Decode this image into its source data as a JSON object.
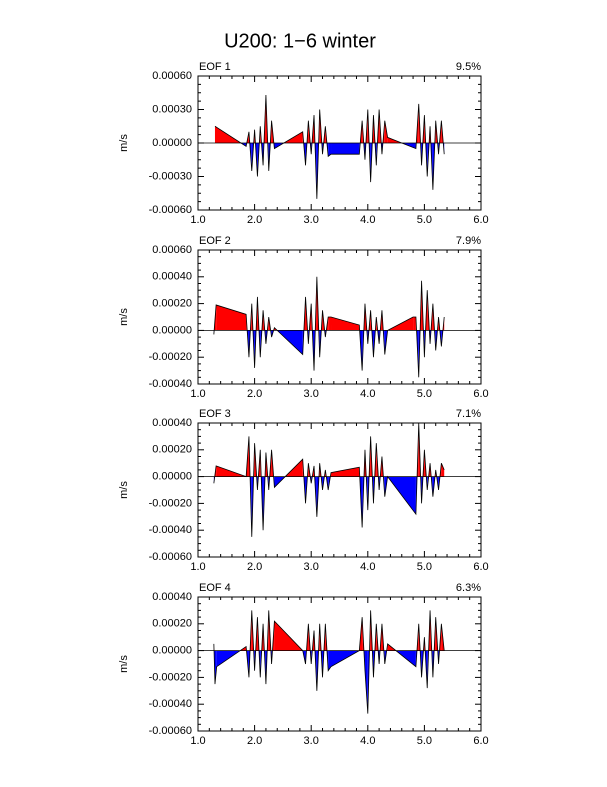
{
  "title": "U200: 1−6 winter",
  "chart_data": [
    {
      "type": "area",
      "label": "EOF 1",
      "annotation": "9.5%",
      "ylabel": "m/s",
      "pos_color": "#ff0000",
      "neg_color": "#0000ff",
      "xlim": [
        1,
        6
      ],
      "xticks": [
        {
          "value": 1,
          "label": "1.0"
        },
        {
          "value": 2,
          "label": "2.0"
        },
        {
          "value": 3,
          "label": "3.0"
        },
        {
          "value": 4,
          "label": "4.0"
        },
        {
          "value": 5,
          "label": "5.0"
        },
        {
          "value": 6,
          "label": "6.0"
        }
      ],
      "ylim": [
        -0.0006,
        0.0006
      ],
      "yticks": [
        {
          "value": -0.0006,
          "label": "-0.00060"
        },
        {
          "value": -0.0003,
          "label": "-0.00030"
        },
        {
          "value": 0,
          "label": "0.00000"
        },
        {
          "value": 0.0003,
          "label": "0.00030"
        },
        {
          "value": 0.0006,
          "label": "0.00060"
        }
      ],
      "x": [
        1.3,
        1.85,
        1.9,
        1.95,
        2.0,
        2.05,
        2.1,
        2.15,
        2.2,
        2.25,
        2.3,
        2.35,
        2.85,
        2.9,
        2.95,
        3.0,
        3.05,
        3.1,
        3.15,
        3.2,
        3.25,
        3.3,
        3.35,
        3.85,
        3.9,
        3.95,
        4.0,
        4.05,
        4.1,
        4.15,
        4.2,
        4.25,
        4.3,
        4.35,
        4.85,
        4.9,
        4.95,
        5.0,
        5.05,
        5.1,
        5.15,
        5.2,
        5.25,
        5.3,
        5.35
      ],
      "values": [
        0.00015,
        -3e-05,
        0.0001,
        -0.00025,
        0.00012,
        -0.0003,
        0.00015,
        -0.0002,
        0.00043,
        -0.00025,
        0.0002,
        -5e-05,
        0.0001,
        -0.0002,
        0.0002,
        -0.0001,
        0.00025,
        -0.0005,
        0.0003,
        -0.0001,
        0.00015,
        -0.00012,
        -0.0001,
        -0.0001,
        0.0002,
        -0.00015,
        0.0003,
        -0.00035,
        0.00025,
        -0.0002,
        0.0003,
        -0.0001,
        0.0002,
        5e-05,
        -5e-05,
        0.00035,
        -0.0002,
        0.00025,
        -0.0003,
        0.00015,
        -0.00042,
        0.0002,
        -0.0001,
        0.0002,
        -0.0001
      ]
    },
    {
      "type": "area",
      "label": "EOF 2",
      "annotation": "7.9%",
      "ylabel": "m/s",
      "pos_color": "#ff0000",
      "neg_color": "#0000ff",
      "xlim": [
        1,
        6
      ],
      "xticks": [
        {
          "value": 1,
          "label": "1.0"
        },
        {
          "value": 2,
          "label": "2.0"
        },
        {
          "value": 3,
          "label": "3.0"
        },
        {
          "value": 4,
          "label": "4.0"
        },
        {
          "value": 5,
          "label": "5.0"
        },
        {
          "value": 6,
          "label": "6.0"
        }
      ],
      "ylim": [
        -0.0004,
        0.0006
      ],
      "yticks": [
        {
          "value": -0.0004,
          "label": "-0.00040"
        },
        {
          "value": -0.0002,
          "label": "-0.00020"
        },
        {
          "value": 0,
          "label": "0.00000"
        },
        {
          "value": 0.0002,
          "label": "0.00020"
        },
        {
          "value": 0.0004,
          "label": "0.00040"
        },
        {
          "value": 0.0006,
          "label": "0.00060"
        }
      ],
      "x": [
        1.28,
        1.32,
        1.85,
        1.9,
        1.95,
        2.0,
        2.05,
        2.1,
        2.15,
        2.2,
        2.25,
        2.3,
        2.35,
        2.85,
        2.9,
        2.95,
        3.0,
        3.05,
        3.1,
        3.15,
        3.2,
        3.25,
        3.3,
        3.35,
        3.85,
        3.9,
        3.95,
        4.0,
        4.05,
        4.1,
        4.15,
        4.2,
        4.25,
        4.3,
        4.35,
        4.8,
        4.85,
        4.9,
        4.95,
        5.0,
        5.05,
        5.1,
        5.15,
        5.2,
        5.25,
        5.3,
        5.35
      ],
      "values": [
        -3e-05,
        0.00019,
        0.00012,
        -0.0002,
        0.0002,
        -0.00028,
        0.00025,
        -0.0002,
        0.00015,
        -0.0001,
        0.0001,
        -5e-05,
        2e-05,
        -0.00018,
        0.00025,
        -0.0001,
        0.0002,
        -0.0003,
        0.0004,
        -0.0002,
        0.00015,
        -5e-05,
        0.0001,
        0.0001,
        4e-05,
        -0.0003,
        0.0002,
        -0.0001,
        0.00015,
        -0.0002,
        0.0001,
        -0.0001,
        0.00015,
        -0.00018,
        0.0,
        0.0001,
        0.0001,
        -0.00035,
        0.00037,
        -0.0002,
        0.0003,
        -0.0001,
        0.0002,
        -0.00015,
        0.0001,
        -0.00012,
        0.0001
      ]
    },
    {
      "type": "area",
      "label": "EOF 3",
      "annotation": "7.1%",
      "ylabel": "m/s",
      "pos_color": "#ff0000",
      "neg_color": "#0000ff",
      "xlim": [
        1,
        6
      ],
      "xticks": [
        {
          "value": 1,
          "label": "1.0"
        },
        {
          "value": 2,
          "label": "2.0"
        },
        {
          "value": 3,
          "label": "3.0"
        },
        {
          "value": 4,
          "label": "4.0"
        },
        {
          "value": 5,
          "label": "5.0"
        },
        {
          "value": 6,
          "label": "6.0"
        }
      ],
      "ylim": [
        -0.0006,
        0.0004
      ],
      "yticks": [
        {
          "value": -0.0006,
          "label": "-0.00060"
        },
        {
          "value": -0.0004,
          "label": "-0.00040"
        },
        {
          "value": -0.0002,
          "label": "-0.00020"
        },
        {
          "value": 0,
          "label": "0.00000"
        },
        {
          "value": 0.0002,
          "label": "0.00020"
        },
        {
          "value": 0.0004,
          "label": "0.00040"
        }
      ],
      "x": [
        1.28,
        1.32,
        1.85,
        1.9,
        1.95,
        2.0,
        2.05,
        2.1,
        2.15,
        2.2,
        2.25,
        2.3,
        2.35,
        2.85,
        2.9,
        2.95,
        3.0,
        3.05,
        3.1,
        3.15,
        3.2,
        3.25,
        3.3,
        3.35,
        3.85,
        3.9,
        3.95,
        4.0,
        4.05,
        4.1,
        4.15,
        4.2,
        4.25,
        4.3,
        4.35,
        4.85,
        4.9,
        4.95,
        5.0,
        5.05,
        5.1,
        5.15,
        5.2,
        5.25,
        5.3,
        5.35
      ],
      "values": [
        -5e-05,
        8e-05,
        0.0,
        0.0003,
        -0.00045,
        0.00025,
        -0.0001,
        0.0002,
        -0.0004,
        0.00018,
        -0.0001,
        0.0002,
        -8e-05,
        0.00013,
        -0.0002,
        0.0001,
        -5e-05,
        8e-05,
        -0.0003,
        0.0001,
        -0.0001,
        5e-05,
        -0.0001,
        3e-05,
        7e-05,
        -0.00038,
        0.0002,
        -0.00025,
        0.0003,
        -0.0002,
        0.00025,
        -0.0001,
        0.00015,
        -0.00015,
        0.0,
        -0.00028,
        0.0004,
        -0.0002,
        0.0002,
        -0.0001,
        0.0001,
        -0.00015,
        5e-05,
        -0.0001,
        0.0001,
        5e-05
      ]
    },
    {
      "type": "area",
      "label": "EOF 4",
      "annotation": "6.3%",
      "ylabel": "m/s",
      "pos_color": "#ff0000",
      "neg_color": "#0000ff",
      "xlim": [
        1,
        6
      ],
      "xticks": [
        {
          "value": 1,
          "label": "1.0"
        },
        {
          "value": 2,
          "label": "2.0"
        },
        {
          "value": 3,
          "label": "3.0"
        },
        {
          "value": 4,
          "label": "4.0"
        },
        {
          "value": 5,
          "label": "5.0"
        },
        {
          "value": 6,
          "label": "6.0"
        }
      ],
      "ylim": [
        -0.0006,
        0.0004
      ],
      "yticks": [
        {
          "value": -0.0006,
          "label": "-0.00060"
        },
        {
          "value": -0.0004,
          "label": "-0.00040"
        },
        {
          "value": -0.0002,
          "label": "-0.00020"
        },
        {
          "value": 0,
          "label": "0.00000"
        },
        {
          "value": 0.0002,
          "label": "0.00020"
        },
        {
          "value": 0.0004,
          "label": "0.00040"
        }
      ],
      "x": [
        1.28,
        1.3,
        1.33,
        1.85,
        1.9,
        1.95,
        2.0,
        2.05,
        2.1,
        2.15,
        2.2,
        2.25,
        2.3,
        2.35,
        2.85,
        2.9,
        2.95,
        3.0,
        3.05,
        3.1,
        3.15,
        3.2,
        3.25,
        3.3,
        3.35,
        3.85,
        3.9,
        3.95,
        4.0,
        4.05,
        4.1,
        4.15,
        4.2,
        4.25,
        4.3,
        4.35,
        4.85,
        4.9,
        4.95,
        5.0,
        5.05,
        5.1,
        5.15,
        5.2,
        5.25,
        5.3,
        5.35
      ],
      "values": [
        5e-05,
        -0.00025,
        -0.00012,
        3e-05,
        -0.0002,
        0.0003,
        -0.00015,
        0.00025,
        -0.0002,
        0.0002,
        -0.00025,
        0.0003,
        -0.0001,
        0.00022,
        0.0,
        -0.0001,
        0.0002,
        -0.0001,
        0.00015,
        -0.0003,
        0.0002,
        -0.0002,
        0.0002,
        -0.00015,
        -0.00012,
        0.0,
        0.00025,
        -0.00015,
        -0.00047,
        0.0003,
        -0.0002,
        0.0002,
        -0.0001,
        0.0002,
        -0.0001,
        5e-05,
        -0.00012,
        0.0002,
        -0.0002,
        0.0001,
        -0.00028,
        0.0003,
        -0.0002,
        0.00025,
        -0.0001,
        0.0002,
        0.0
      ]
    }
  ]
}
